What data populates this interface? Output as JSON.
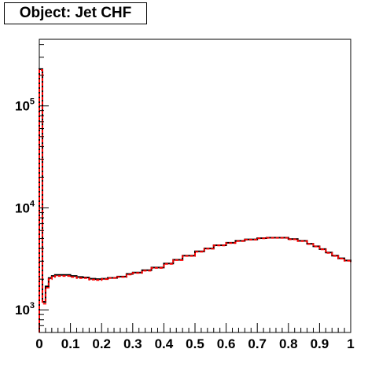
{
  "title": "Object: Jet CHF",
  "chart_data": {
    "type": "line",
    "title": "Object: Jet CHF",
    "xlabel": "",
    "ylabel": "",
    "xlim": [
      0,
      1
    ],
    "ylim": [
      600,
      450000
    ],
    "yscale": "log",
    "grid": false,
    "x_ticks": [
      "0",
      "0.1",
      "0.2",
      "0.3",
      "0.4",
      "0.5",
      "0.6",
      "0.7",
      "0.8",
      "0.9",
      "1"
    ],
    "y_ticks": [
      {
        "value": 1000,
        "base": "10",
        "exp": "3"
      },
      {
        "value": 10000,
        "base": "10",
        "exp": "4"
      },
      {
        "value": 100000,
        "base": "10",
        "exp": "5"
      }
    ],
    "series": [
      {
        "color": "#000000",
        "style": "solid",
        "x": [
          0,
          0.01,
          0.02,
          0.03,
          0.04,
          0.05,
          0.06,
          0.08,
          0.1,
          0.12,
          0.14,
          0.16,
          0.18,
          0.2,
          0.22,
          0.25,
          0.28,
          0.3,
          0.33,
          0.36,
          0.4,
          0.43,
          0.46,
          0.5,
          0.53,
          0.56,
          0.6,
          0.63,
          0.66,
          0.7,
          0.73,
          0.76,
          0.8,
          0.83,
          0.86,
          0.88,
          0.9,
          0.92,
          0.94,
          0.96,
          0.98,
          1.0
        ],
        "y": [
          230000,
          1200,
          1700,
          2050,
          2150,
          2200,
          2200,
          2200,
          2150,
          2100,
          2080,
          2020,
          2000,
          2020,
          2060,
          2120,
          2250,
          2320,
          2450,
          2600,
          2850,
          3100,
          3400,
          3750,
          4000,
          4300,
          4550,
          4750,
          4900,
          5050,
          5100,
          5100,
          4950,
          4750,
          4450,
          4200,
          3950,
          3650,
          3400,
          3200,
          3050,
          2950
        ]
      },
      {
        "color": "#ff0000",
        "style": "dashed",
        "x": [
          0,
          0.01,
          0.02,
          0.03,
          0.04,
          0.05,
          0.06,
          0.08,
          0.1,
          0.12,
          0.14,
          0.16,
          0.18,
          0.2,
          0.22,
          0.25,
          0.28,
          0.3,
          0.33,
          0.36,
          0.4,
          0.43,
          0.46,
          0.5,
          0.53,
          0.56,
          0.6,
          0.63,
          0.66,
          0.7,
          0.73,
          0.76,
          0.8,
          0.83,
          0.86,
          0.88,
          0.9,
          0.92,
          0.94,
          0.96,
          0.98,
          1.0
        ],
        "y": [
          225000,
          1150,
          1650,
          2000,
          2100,
          2150,
          2150,
          2150,
          2100,
          2050,
          2050,
          1980,
          1960,
          2000,
          2050,
          2100,
          2220,
          2300,
          2420,
          2580,
          2820,
          3080,
          3380,
          3720,
          3980,
          4280,
          4520,
          4720,
          4880,
          5020,
          5080,
          5080,
          4920,
          4720,
          4420,
          4180,
          3920,
          3620,
          3380,
          3180,
          3030,
          2930
        ]
      }
    ]
  }
}
